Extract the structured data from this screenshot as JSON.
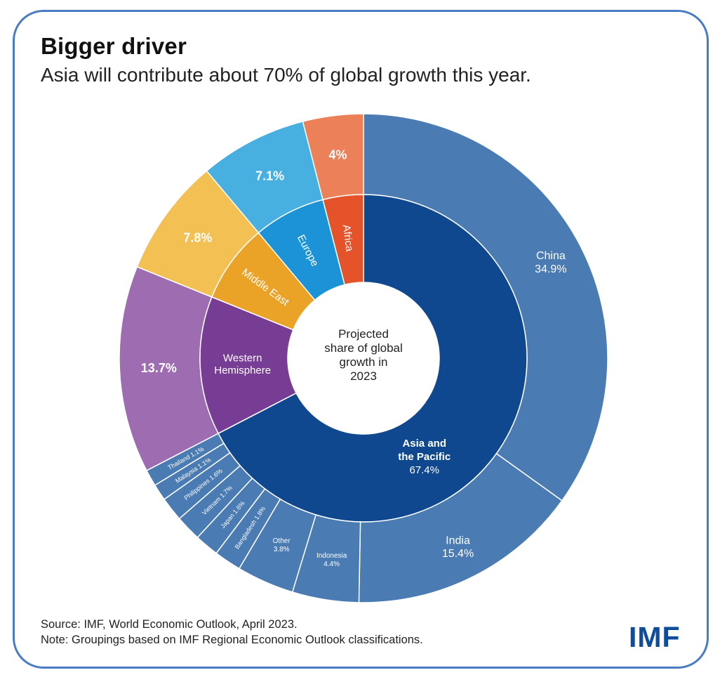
{
  "header": {
    "title": "Bigger driver",
    "subtitle": "Asia will contribute about 70% of global growth this year."
  },
  "footer": {
    "source": "Source: IMF, World Economic Outlook, April 2023.",
    "note": "Note: Groupings based on IMF Regional Economic Outlook classifications.",
    "logo_text": "IMF"
  },
  "chart_data": {
    "type": "pie",
    "variant": "sunburst",
    "center_label": [
      "Projected",
      "share of global",
      "growth in",
      "2023"
    ],
    "inner_ring": [
      {
        "name": "Asia and the Pacific",
        "display": "Asia and\nthe Pacific",
        "value": 67.4,
        "value_label": "67.4%",
        "color": "#10488f",
        "outer_color": "#4a7bb2"
      },
      {
        "name": "Western Hemisphere",
        "display": "Western\nHemisphere",
        "value": 13.7,
        "value_label": "13.7%",
        "color": "#773c93",
        "outer_color": "#9e6db1"
      },
      {
        "name": "Middle East",
        "display": "Middle East",
        "value": 7.8,
        "value_label": "7.8%",
        "color": "#eba327",
        "outer_color": "#f3c153"
      },
      {
        "name": "Europe",
        "display": "Europe",
        "value": 7.1,
        "value_label": "7.1%",
        "color": "#1b93d6",
        "outer_color": "#47b0e0"
      },
      {
        "name": "Africa",
        "display": "Africa",
        "value": 4.0,
        "value_label": "4%",
        "color": "#e4532a",
        "outer_color": "#ec8058"
      }
    ],
    "asia_breakdown": [
      {
        "name": "China",
        "value": 34.9,
        "value_label": "34.9%",
        "label": "China\n34.9%"
      },
      {
        "name": "India",
        "value": 15.4,
        "value_label": "15.4%",
        "label": "India\n15.4%"
      },
      {
        "name": "Indonesia",
        "value": 4.4,
        "value_label": "4.4%",
        "label": "Indonesia\n4.4%"
      },
      {
        "name": "Other",
        "value": 3.8,
        "value_label": "3.8%",
        "label": "Other\n3.8%"
      },
      {
        "name": "Bangladesh",
        "value": 1.8,
        "value_label": "1.8%",
        "label": "Bangladesh 1.8%"
      },
      {
        "name": "Japan",
        "value": 1.6,
        "value_label": "1.6%",
        "label": "Japan 1.6%"
      },
      {
        "name": "Vietnam",
        "value": 1.7,
        "value_label": "1.7%",
        "label": "Vietnam 1.7%"
      },
      {
        "name": "Philippines",
        "value": 1.6,
        "value_label": "1.6%",
        "label": "Philippines 1.6%"
      },
      {
        "name": "Malaysia",
        "value": 1.1,
        "value_label": "1.1%",
        "label": "Malaysia 1.1%"
      },
      {
        "name": "Thailand",
        "value": 1.1,
        "value_label": "1.1%",
        "label": "Thailand 1.1%"
      }
    ]
  }
}
